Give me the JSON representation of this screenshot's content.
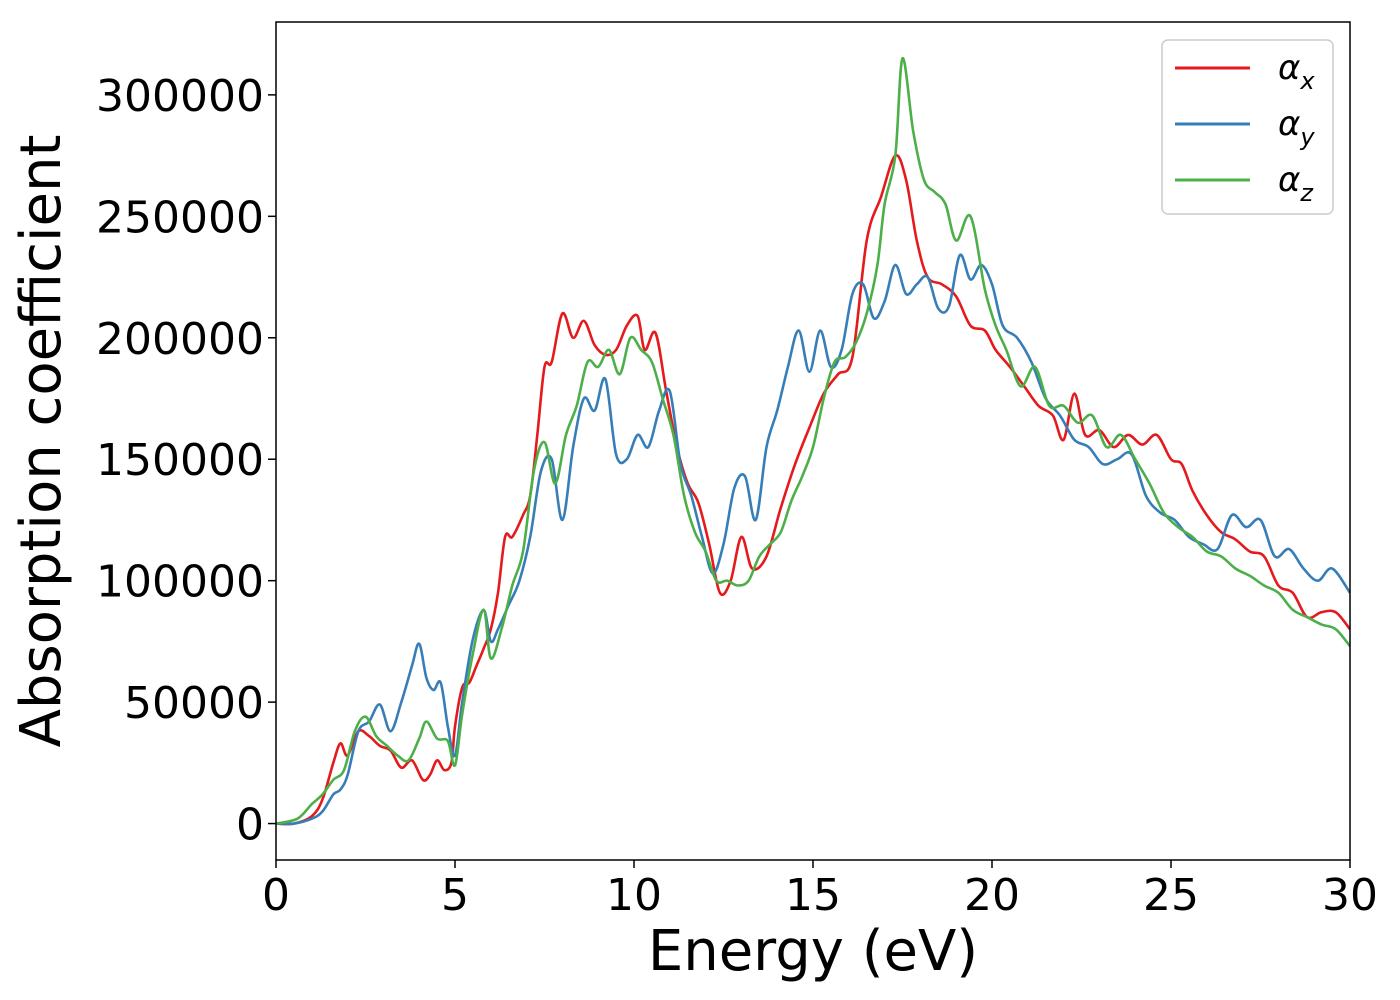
{
  "chart_data": {
    "type": "line",
    "xlabel": "Energy (eV)",
    "ylabel": "Absorption coefficient",
    "xlim": [
      0,
      30
    ],
    "ylim": [
      -15000,
      330000
    ],
    "xticks": [
      0,
      5,
      10,
      15,
      20,
      25,
      30
    ],
    "xtick_labels": [
      "0",
      "5",
      "10",
      "15",
      "20",
      "25",
      "30"
    ],
    "yticks": [
      0,
      50000,
      100000,
      150000,
      200000,
      250000,
      300000
    ],
    "ytick_labels": [
      "0",
      "50000",
      "100000",
      "150000",
      "200000",
      "250000",
      "300000"
    ],
    "grid": false,
    "legend_position": "top-right",
    "series": [
      {
        "name": "αx",
        "symbol": "α",
        "subscript": "x",
        "color": "#e41a1c",
        "x": [
          0,
          0.5,
          1.0,
          1.3,
          1.6,
          1.8,
          2.0,
          2.3,
          2.6,
          2.9,
          3.2,
          3.5,
          3.8,
          4.1,
          4.3,
          4.5,
          4.7,
          4.9,
          5.0,
          5.2,
          5.4,
          5.6,
          5.8,
          6.0,
          6.2,
          6.4,
          6.6,
          6.9,
          7.1,
          7.3,
          7.5,
          7.7,
          8.0,
          8.3,
          8.6,
          8.9,
          9.2,
          9.5,
          9.8,
          10.1,
          10.3,
          10.6,
          10.9,
          11.2,
          11.5,
          11.8,
          12.1,
          12.4,
          12.7,
          13.0,
          13.3,
          13.7,
          14.1,
          14.5,
          14.9,
          15.3,
          15.7,
          16.1,
          16.5,
          16.9,
          17.3,
          17.6,
          17.9,
          18.2,
          18.6,
          19.0,
          19.4,
          19.8,
          20.1,
          20.5,
          20.9,
          21.3,
          21.7,
          22.0,
          22.3,
          22.6,
          23.0,
          23.4,
          23.8,
          24.2,
          24.6,
          25.0,
          25.3,
          25.6,
          26.0,
          26.4,
          26.8,
          27.2,
          27.6,
          28.0,
          28.4,
          28.8,
          29.2,
          29.6,
          30.0
        ],
        "y": [
          0,
          0,
          3000,
          10000,
          25000,
          33000,
          28000,
          38000,
          36000,
          32000,
          30000,
          23000,
          26000,
          18000,
          20000,
          26000,
          22000,
          25000,
          40000,
          56000,
          58000,
          65000,
          72000,
          80000,
          95000,
          118000,
          118000,
          127000,
          135000,
          160000,
          188000,
          190000,
          210000,
          200000,
          207000,
          197000,
          193000,
          195000,
          205000,
          209000,
          195000,
          202000,
          178000,
          155000,
          140000,
          132000,
          115000,
          95000,
          100000,
          118000,
          105000,
          110000,
          130000,
          148000,
          163000,
          177000,
          185000,
          192000,
          240000,
          258000,
          275000,
          265000,
          240000,
          225000,
          222000,
          217000,
          205000,
          203000,
          195000,
          188000,
          180000,
          172000,
          168000,
          158000,
          177000,
          160000,
          162000,
          155000,
          160000,
          156000,
          160000,
          150000,
          148000,
          137000,
          127000,
          120000,
          117000,
          112000,
          110000,
          98000,
          95000,
          85000,
          87000,
          87000,
          80000
        ]
      },
      {
        "name": "αy",
        "symbol": "α",
        "subscript": "y",
        "color": "#377eb8",
        "x": [
          0,
          0.5,
          1.0,
          1.3,
          1.6,
          1.8,
          2.0,
          2.3,
          2.6,
          2.9,
          3.2,
          3.5,
          3.8,
          4.0,
          4.2,
          4.4,
          4.6,
          4.8,
          5.0,
          5.2,
          5.5,
          5.8,
          6.0,
          6.2,
          6.5,
          6.8,
          7.1,
          7.4,
          7.7,
          8.0,
          8.3,
          8.6,
          8.9,
          9.2,
          9.5,
          9.8,
          10.1,
          10.4,
          10.7,
          11.0,
          11.3,
          11.6,
          11.9,
          12.2,
          12.5,
          12.8,
          13.1,
          13.4,
          13.7,
          14.0,
          14.3,
          14.6,
          14.9,
          15.2,
          15.5,
          15.8,
          16.1,
          16.4,
          16.7,
          17.0,
          17.3,
          17.6,
          17.9,
          18.2,
          18.5,
          18.8,
          19.1,
          19.4,
          19.7,
          20.0,
          20.3,
          20.7,
          21.1,
          21.5,
          21.9,
          22.3,
          22.7,
          23.1,
          23.5,
          23.9,
          24.3,
          24.7,
          25.1,
          25.5,
          25.9,
          26.3,
          26.7,
          27.1,
          27.5,
          27.9,
          28.3,
          28.7,
          29.1,
          29.5,
          30.0
        ],
        "y": [
          0,
          0,
          2000,
          5000,
          12000,
          14000,
          20000,
          38000,
          42000,
          49000,
          38000,
          50000,
          65000,
          74000,
          60000,
          55000,
          58000,
          40000,
          28000,
          50000,
          76000,
          88000,
          75000,
          80000,
          90000,
          100000,
          118000,
          145000,
          150000,
          125000,
          155000,
          175000,
          170000,
          183000,
          152000,
          150000,
          160000,
          155000,
          170000,
          178000,
          148000,
          135000,
          118000,
          103000,
          115000,
          138000,
          143000,
          125000,
          155000,
          170000,
          188000,
          203000,
          186000,
          203000,
          188000,
          195000,
          218000,
          222000,
          208000,
          215000,
          230000,
          218000,
          222000,
          225000,
          212000,
          213000,
          234000,
          224000,
          230000,
          222000,
          205000,
          200000,
          190000,
          175000,
          168000,
          158000,
          155000,
          148000,
          150000,
          152000,
          135000,
          128000,
          125000,
          118000,
          115000,
          113000,
          127000,
          122000,
          125000,
          110000,
          113000,
          105000,
          100000,
          105000,
          95000
        ]
      },
      {
        "name": "αz",
        "symbol": "α",
        "subscript": "z",
        "color": "#4daf4a",
        "x": [
          0,
          0.6,
          1.0,
          1.3,
          1.6,
          1.9,
          2.2,
          2.5,
          2.8,
          3.1,
          3.4,
          3.7,
          4.0,
          4.2,
          4.5,
          4.8,
          5.0,
          5.2,
          5.5,
          5.8,
          6.0,
          6.3,
          6.6,
          6.9,
          7.2,
          7.5,
          7.8,
          8.1,
          8.4,
          8.7,
          9.0,
          9.3,
          9.6,
          9.9,
          10.2,
          10.5,
          10.8,
          11.1,
          11.4,
          11.7,
          12.0,
          12.3,
          12.6,
          12.9,
          13.2,
          13.5,
          13.8,
          14.1,
          14.4,
          14.7,
          15.0,
          15.3,
          15.6,
          15.9,
          16.2,
          16.5,
          16.8,
          17.0,
          17.3,
          17.5,
          17.8,
          18.1,
          18.4,
          18.7,
          19.0,
          19.4,
          19.8,
          20.1,
          20.4,
          20.8,
          21.2,
          21.6,
          22.0,
          22.4,
          22.8,
          23.2,
          23.6,
          24.0,
          24.4,
          24.8,
          25.2,
          25.6,
          26.0,
          26.4,
          26.8,
          27.2,
          27.6,
          28.0,
          28.4,
          28.8,
          29.2,
          29.6,
          30.0
        ],
        "y": [
          0,
          2000,
          8000,
          12000,
          18000,
          22000,
          38000,
          44000,
          36000,
          32000,
          28000,
          26000,
          35000,
          42000,
          35000,
          34000,
          24000,
          45000,
          70000,
          88000,
          68000,
          80000,
          98000,
          112000,
          145000,
          157000,
          140000,
          160000,
          172000,
          190000,
          188000,
          195000,
          185000,
          200000,
          195000,
          190000,
          175000,
          160000,
          135000,
          120000,
          112000,
          100000,
          100000,
          98000,
          100000,
          110000,
          115000,
          120000,
          133000,
          143000,
          155000,
          175000,
          190000,
          192000,
          198000,
          210000,
          230000,
          255000,
          275000,
          315000,
          285000,
          265000,
          260000,
          255000,
          240000,
          250000,
          220000,
          205000,
          195000,
          180000,
          188000,
          172000,
          172000,
          165000,
          168000,
          155000,
          160000,
          150000,
          140000,
          128000,
          122000,
          118000,
          112000,
          110000,
          105000,
          102000,
          98000,
          95000,
          88000,
          85000,
          82000,
          80000,
          73000
        ]
      }
    ]
  }
}
